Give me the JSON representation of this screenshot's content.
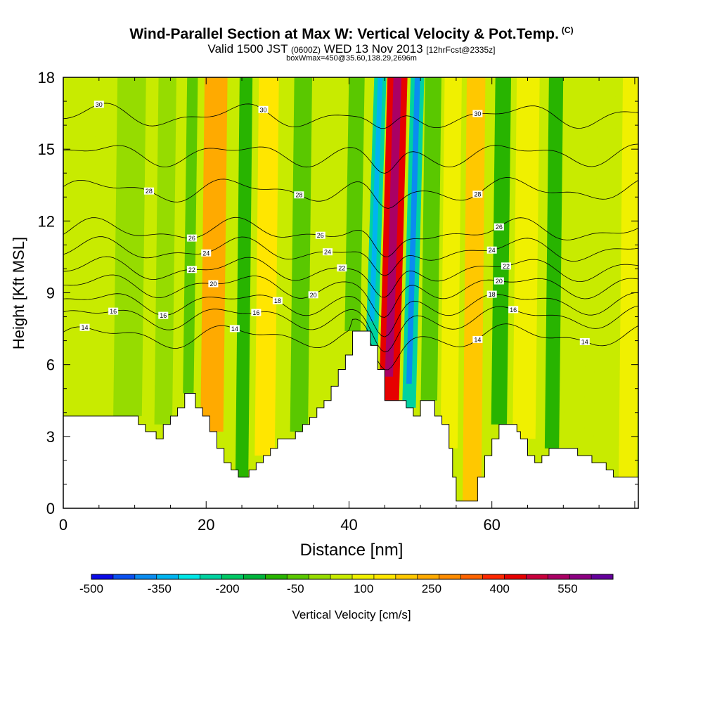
{
  "header": {
    "title": "Wind-Parallel Section at Max W: Vertical Velocity & Pot.Temp.",
    "copyright": "(C)",
    "valid_prefix": "Valid 1500 JST",
    "valid_utc": "(0600Z)",
    "valid_date": "WED 13 Nov 2013",
    "forecast": "[12hrFcst@2335z]",
    "box_info": "boxWmax=450@35.60,138.29,2696m"
  },
  "chart_data": {
    "type": "heatmap",
    "xlabel": "Distance [nm]",
    "ylabel": "Height [Kft MSL]",
    "xlim": [
      0,
      80.5
    ],
    "ylim": [
      0,
      18
    ],
    "x_ticks": [
      "0",
      "20",
      "40",
      "60"
    ],
    "x_tick_values": [
      0,
      20,
      40,
      60
    ],
    "y_ticks": [
      "0",
      "3",
      "6",
      "9",
      "12",
      "15",
      "18"
    ],
    "y_tick_values": [
      0,
      3,
      6,
      9,
      12,
      15,
      18
    ],
    "colorbar": {
      "label": "Vertical Velocity [cm/s]",
      "tick_labels": [
        "-500",
        "-350",
        "-200",
        "-50",
        "100",
        "250",
        "400",
        "550"
      ],
      "tick_values": [
        -500,
        -350,
        -200,
        -50,
        100,
        250,
        400,
        550
      ],
      "range": [
        -500,
        650
      ],
      "colors": [
        "#0a0ae6",
        "#0a50f0",
        "#0a8cf0",
        "#00b4f0",
        "#00e6e6",
        "#00d2a0",
        "#00c864",
        "#00b43c",
        "#28b400",
        "#5ac800",
        "#96dc00",
        "#c8eb00",
        "#f0f000",
        "#ffe600",
        "#ffc800",
        "#ffaa00",
        "#ff8c00",
        "#ff6400",
        "#ff2800",
        "#e60000",
        "#c8003c",
        "#aa0064",
        "#8c0082",
        "#64009b"
      ]
    },
    "terrain_kft": [
      [
        0,
        3.85
      ],
      [
        10.5,
        3.85
      ],
      [
        10.5,
        3.5
      ],
      [
        11.5,
        3.5
      ],
      [
        11.5,
        3.2
      ],
      [
        13,
        3.2
      ],
      [
        13,
        2.9
      ],
      [
        14,
        2.9
      ],
      [
        14,
        3.5
      ],
      [
        15,
        3.5
      ],
      [
        15,
        3.85
      ],
      [
        16,
        3.85
      ],
      [
        16,
        4.2
      ],
      [
        17,
        4.2
      ],
      [
        17,
        4.8
      ],
      [
        18.5,
        4.8
      ],
      [
        18.5,
        4.2
      ],
      [
        19.5,
        4.2
      ],
      [
        19.5,
        3.85
      ],
      [
        20.5,
        3.85
      ],
      [
        20.5,
        3.2
      ],
      [
        21.5,
        3.2
      ],
      [
        21.5,
        2.5
      ],
      [
        22.5,
        2.5
      ],
      [
        22.5,
        1.9
      ],
      [
        23.5,
        1.9
      ],
      [
        23.5,
        1.6
      ],
      [
        24.5,
        1.6
      ],
      [
        24.5,
        1.3
      ],
      [
        26,
        1.3
      ],
      [
        26,
        1.6
      ],
      [
        27,
        1.6
      ],
      [
        27,
        1.9
      ],
      [
        28,
        1.9
      ],
      [
        28,
        2.2
      ],
      [
        29,
        2.2
      ],
      [
        29,
        2.5
      ],
      [
        30,
        2.5
      ],
      [
        30,
        2.9
      ],
      [
        32.5,
        2.9
      ],
      [
        32.5,
        3.2
      ],
      [
        33.5,
        3.2
      ],
      [
        33.5,
        3.5
      ],
      [
        34.5,
        3.5
      ],
      [
        34.5,
        3.8
      ],
      [
        35.5,
        3.8
      ],
      [
        35.5,
        4.2
      ],
      [
        36.5,
        4.2
      ],
      [
        36.5,
        4.5
      ],
      [
        37.5,
        4.5
      ],
      [
        37.5,
        5.1
      ],
      [
        38.5,
        5.1
      ],
      [
        38.5,
        5.8
      ],
      [
        39.5,
        5.8
      ],
      [
        39.5,
        6.4
      ],
      [
        40.5,
        6.4
      ],
      [
        40.5,
        7.4
      ],
      [
        43,
        7.4
      ],
      [
        43,
        6.8
      ],
      [
        44,
        6.8
      ],
      [
        44,
        5.8
      ],
      [
        45,
        5.8
      ],
      [
        45,
        4.5
      ],
      [
        48,
        4.5
      ],
      [
        48,
        4.2
      ],
      [
        49,
        4.2
      ],
      [
        49,
        3.85
      ],
      [
        50,
        3.85
      ],
      [
        50,
        4.5
      ],
      [
        52,
        4.5
      ],
      [
        52,
        3.85
      ],
      [
        53,
        3.85
      ],
      [
        53,
        3.5
      ],
      [
        54,
        3.5
      ],
      [
        54,
        2.5
      ],
      [
        54.5,
        2.5
      ],
      [
        54.5,
        1.3
      ],
      [
        55,
        1.3
      ],
      [
        55,
        0.3
      ],
      [
        58,
        0.3
      ],
      [
        58,
        1.3
      ],
      [
        59,
        1.3
      ],
      [
        59,
        2.2
      ],
      [
        60,
        2.2
      ],
      [
        60,
        2.9
      ],
      [
        61,
        2.9
      ],
      [
        61,
        3.5
      ],
      [
        63.5,
        3.5
      ],
      [
        63.5,
        3.2
      ],
      [
        64,
        3.2
      ],
      [
        64,
        2.9
      ],
      [
        65,
        2.9
      ],
      [
        65,
        2.2
      ],
      [
        66,
        2.2
      ],
      [
        66,
        1.9
      ],
      [
        67,
        1.9
      ],
      [
        67,
        2.2
      ],
      [
        68,
        2.2
      ],
      [
        68,
        2.5
      ],
      [
        72,
        2.5
      ],
      [
        72,
        2.2
      ],
      [
        74,
        2.2
      ],
      [
        74,
        1.9
      ],
      [
        76,
        1.9
      ],
      [
        76,
        1.6
      ],
      [
        77,
        1.6
      ],
      [
        77,
        1.3
      ],
      [
        80.5,
        1.3
      ]
    ],
    "velocity_bands": [
      {
        "x": 2,
        "w": 4,
        "value": 40
      },
      {
        "x": 9,
        "w": 4,
        "value": 20
      },
      {
        "x": 14,
        "w": 2.5,
        "value": 0
      },
      {
        "x": 17.5,
        "w": 1.5,
        "value": -50
      },
      {
        "x": 20.8,
        "w": 3.2,
        "value": 250
      },
      {
        "x": 25,
        "w": 1.8,
        "value": -90
      },
      {
        "x": 28.2,
        "w": 2.8,
        "value": 150
      },
      {
        "x": 33,
        "w": 2.5,
        "value": -30
      },
      {
        "x": 36.8,
        "w": 3.5,
        "value": 70
      },
      {
        "x": 40.5,
        "w": 2.2,
        "value": -50
      },
      {
        "x": 43.2,
        "w": 1.7,
        "value": -230
      },
      {
        "x": 45.6,
        "w": 2.8,
        "value": 430
      },
      {
        "x": 48.4,
        "w": 1.9,
        "value": -260
      },
      {
        "x": 51.2,
        "w": 2.3,
        "value": -60
      },
      {
        "x": 54,
        "w": 2.4,
        "value": 90
      },
      {
        "x": 57.2,
        "w": 2.6,
        "value": 190
      },
      {
        "x": 61,
        "w": 2.2,
        "value": -90
      },
      {
        "x": 64.5,
        "w": 3.2,
        "value": 80
      },
      {
        "x": 68.4,
        "w": 2,
        "value": -70
      },
      {
        "x": 71.5,
        "w": 2.8,
        "value": 70
      },
      {
        "x": 75.5,
        "w": 2.5,
        "value": 40
      },
      {
        "x": 79,
        "w": 2.5,
        "value": 120
      }
    ],
    "isentropes": [
      {
        "base": 7.2,
        "labels": [
          {
            "x": 3,
            "text": "14"
          },
          {
            "x": 24,
            "text": "14"
          },
          {
            "x": 58,
            "text": "14"
          },
          {
            "x": 73,
            "text": "14"
          }
        ]
      },
      {
        "base": 8.0,
        "labels": [
          {
            "x": 7,
            "text": "16"
          },
          {
            "x": 27,
            "text": "16"
          },
          {
            "x": 63,
            "text": "16"
          }
        ]
      },
      {
        "base": 8.6,
        "labels": [
          {
            "x": 14,
            "text": "16"
          },
          {
            "x": 30,
            "text": "18"
          },
          {
            "x": 60,
            "text": "18"
          }
        ]
      },
      {
        "base": 9.3,
        "labels": [
          {
            "x": 21,
            "text": "20"
          },
          {
            "x": 35,
            "text": "20"
          },
          {
            "x": 61,
            "text": "20"
          }
        ]
      },
      {
        "base": 10.0,
        "labels": [
          {
            "x": 18,
            "text": "22"
          },
          {
            "x": 39,
            "text": "22"
          },
          {
            "x": 62,
            "text": "22"
          }
        ]
      },
      {
        "base": 10.8,
        "labels": [
          {
            "x": 20,
            "text": "24"
          },
          {
            "x": 37,
            "text": "24"
          },
          {
            "x": 60,
            "text": "24"
          }
        ]
      },
      {
        "base": 11.6,
        "labels": [
          {
            "x": 18,
            "text": "26"
          },
          {
            "x": 36,
            "text": "26"
          },
          {
            "x": 61,
            "text": "26"
          }
        ]
      },
      {
        "base": 13.3,
        "labels": [
          {
            "x": 12,
            "text": "28"
          },
          {
            "x": 33,
            "text": "28"
          },
          {
            "x": 58,
            "text": "28"
          }
        ]
      },
      {
        "base": 14.8,
        "labels": []
      },
      {
        "base": 16.4,
        "labels": [
          {
            "x": 5,
            "text": "30"
          },
          {
            "x": 28,
            "text": "30"
          },
          {
            "x": 58,
            "text": "30"
          }
        ]
      }
    ]
  }
}
